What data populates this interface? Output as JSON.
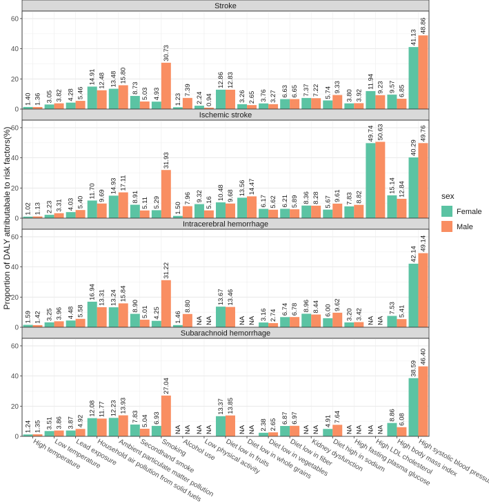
{
  "chart_data": {
    "type": "bar",
    "ylabel": "Proportion of DALY attributabale to risk factors(%)",
    "xlabel": "",
    "ylim": [
      0,
      65
    ],
    "yticks": [
      0,
      20,
      40,
      60
    ],
    "grid": true,
    "legend": {
      "title": "sex",
      "position": "right"
    },
    "categories": [
      "High temperature",
      "Low temperature",
      "Lead exposure",
      "Household air pollution from solid fuels",
      "Ambient particulate matter pollution",
      "Secondhand smoke",
      "Smoking",
      "Alcohol use",
      "Low physical activity",
      "Diet low in fruits",
      "Diet low in whole grains",
      "Diet low in vegetables",
      "Diet low in fiber",
      "Kidney dysfunction",
      "Diet high in sodium",
      "High fasting plasma glucose",
      "High LDL cholesterol",
      "High body mass index",
      "High systolic blood pressure"
    ],
    "series": [
      {
        "name": "Female",
        "color": "#5bc3a3"
      },
      {
        "name": "Male",
        "color": "#f98e62"
      }
    ],
    "panels": [
      {
        "title": "Stroke",
        "female": [
          "1.40",
          "3.05",
          "4.28",
          "14.91",
          "13.48",
          "8.73",
          "4.93",
          "1.23",
          "2.24",
          "12.86",
          "3.26",
          "3.76",
          "6.63",
          "7.37",
          "5.74",
          "3.80",
          "11.94",
          "9.57",
          "41.13"
        ],
        "male": [
          "1.36",
          "3.82",
          "5.46",
          "12.48",
          "15.80",
          "5.03",
          "30.73",
          "7.39",
          "0.94",
          "12.83",
          "2.65",
          "3.27",
          "6.65",
          "7.22",
          "9.33",
          "3.92",
          "9.23",
          "6.85",
          "48.86"
        ]
      },
      {
        "title": "Ischemic stroke",
        "female": [
          "1.02",
          "2.23",
          "4.03",
          "11.70",
          "14.93",
          "8.91",
          "5.29",
          "1.50",
          "9.32",
          "10.48",
          "13.56",
          "6.17",
          "6.21",
          "8.36",
          "5.67",
          "7.83",
          "49.74",
          "15.14",
          "40.29"
        ],
        "male": [
          "1.13",
          "3.31",
          "5.40",
          "9.69",
          "17.11",
          "5.11",
          "31.93",
          "7.96",
          "5.16",
          "9.68",
          "14.47",
          "5.62",
          "5.89",
          "8.28",
          "9.61",
          "8.82",
          "50.63",
          "12.84",
          "49.76"
        ]
      },
      {
        "title": "Intracerebral hemorrhage",
        "female": [
          "1.59",
          "3.25",
          "4.48",
          "16.94",
          "13.24",
          "8.90",
          "4.25",
          "1.46",
          "NA",
          "13.67",
          "NA",
          "3.16",
          "6.74",
          "8.96",
          "6.00",
          "3.20",
          "NA",
          "7.53",
          "42.14"
        ],
        "male": [
          "1.42",
          "3.96",
          "5.58",
          "13.31",
          "15.84",
          "5.01",
          "31.22",
          "8.80",
          "NA",
          "13.46",
          "NA",
          "2.74",
          "6.78",
          "8.44",
          "9.62",
          "3.42",
          "NA",
          "5.41",
          "49.14"
        ]
      },
      {
        "title": "Subarachnoid hemorrhage",
        "female": [
          "1.24",
          "3.51",
          "3.87",
          "12.08",
          "12.23",
          "7.83",
          "6.93",
          "NA",
          "NA",
          "13.37",
          "NA",
          "2.38",
          "6.87",
          "NA",
          "4.91",
          "NA",
          "NA",
          "8.86",
          "38.59"
        ],
        "male": [
          "1.35",
          "3.86",
          "4.92",
          "11.77",
          "13.93",
          "5.04",
          "27.04",
          "NA",
          "NA",
          "13.85",
          "NA",
          "2.65",
          "6.97",
          "NA",
          "7.64",
          "NA",
          "NA",
          "6.08",
          "46.40"
        ]
      }
    ]
  }
}
